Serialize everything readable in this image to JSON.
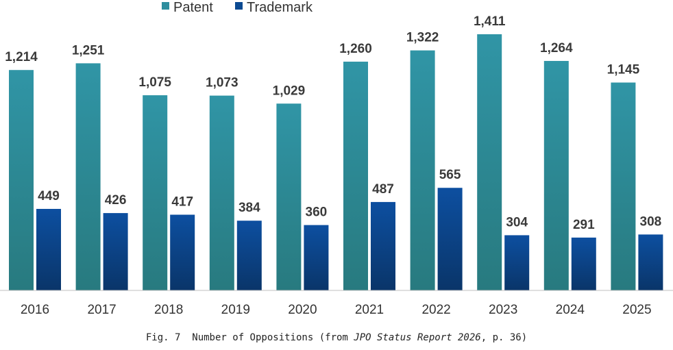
{
  "chart_data": {
    "type": "bar",
    "categories": [
      "2016",
      "2017",
      "2018",
      "2019",
      "2020",
      "2021",
      "2022",
      "2023",
      "2024",
      "2025"
    ],
    "series": [
      {
        "name": "Patent",
        "values": [
          1214,
          1251,
          1075,
          1073,
          1029,
          1260,
          1322,
          1411,
          1264,
          1145
        ],
        "labels": [
          "1,214",
          "1,251",
          "1,075",
          "1,073",
          "1,029",
          "1,260",
          "1,322",
          "1,411",
          "1,264",
          "1,145"
        ]
      },
      {
        "name": "Trademark",
        "values": [
          449,
          426,
          417,
          384,
          360,
          487,
          565,
          304,
          291,
          308
        ],
        "labels": [
          "449",
          "426",
          "417",
          "384",
          "360",
          "487",
          "565",
          "304",
          "291",
          "308"
        ]
      }
    ],
    "ylim": [
      0,
      1411
    ],
    "grid": false,
    "legend": "top-center",
    "colors": {
      "Patent": "#2e8e9e",
      "Trademark": "#0c4a92"
    }
  },
  "caption": {
    "prefix": "Fig. 7  Number of Oppositions (from ",
    "italic": "JPO Status Report 2026",
    "suffix": ", p. 36)"
  }
}
